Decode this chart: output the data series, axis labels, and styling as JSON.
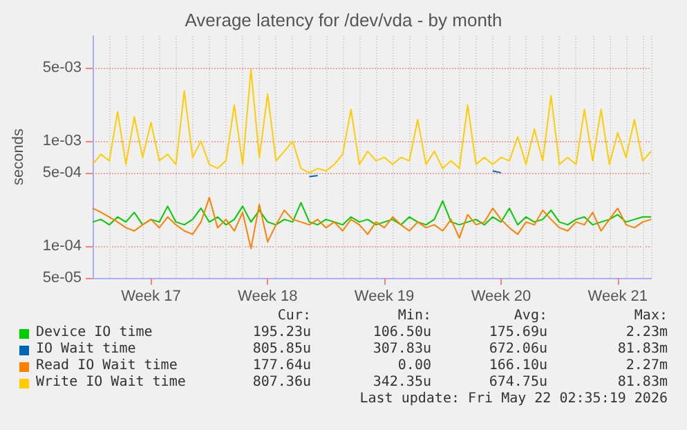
{
  "chart_data": {
    "type": "line",
    "title": "Average latency for /dev/vda - by month",
    "ylabel": "seconds",
    "log": "y",
    "grid": true,
    "legend": "bottom",
    "ylim": [
      5e-05,
      0.01
    ],
    "yticks": [
      {
        "value": 5e-05,
        "label": "5e-05"
      },
      {
        "value": 0.0001,
        "label": "1e-04"
      },
      {
        "value": 0.0005,
        "label": "5e-04"
      },
      {
        "value": 0.001,
        "label": "1e-03"
      },
      {
        "value": 0.005,
        "label": "5e-03"
      }
    ],
    "categories": [
      null,
      null,
      null,
      null,
      null,
      null,
      null,
      "Week 17",
      null,
      null,
      null,
      null,
      null,
      null,
      null,
      null,
      null,
      null,
      null,
      null,
      null,
      "Week 18",
      null,
      null,
      null,
      null,
      null,
      null,
      null,
      null,
      null,
      null,
      null,
      null,
      null,
      "Week 19",
      null,
      null,
      null,
      null,
      null,
      null,
      null,
      null,
      null,
      null,
      null,
      null,
      null,
      "Week 20",
      null,
      null,
      null,
      null,
      null,
      null,
      null,
      null,
      null,
      null,
      null,
      null,
      null,
      "Week 21",
      null,
      null,
      null,
      null
    ],
    "series": [
      {
        "name": "Device IO time",
        "color": "#00cc00",
        "values": [
          0.00017,
          0.00018,
          0.00016,
          0.00019,
          0.00017,
          0.00021,
          0.00016,
          0.00018,
          0.00017,
          0.00024,
          0.00017,
          0.00016,
          0.00018,
          0.00023,
          0.00017,
          0.00019,
          0.00016,
          0.00018,
          0.00024,
          0.00017,
          0.00022,
          0.00017,
          0.00016,
          0.00018,
          0.00017,
          0.00026,
          0.00017,
          0.00016,
          0.00018,
          0.00017,
          0.00016,
          0.00019,
          0.00017,
          0.00018,
          0.00016,
          0.00017,
          0.00018,
          0.00016,
          0.00019,
          0.00017,
          0.00016,
          0.00018,
          0.00027,
          0.00017,
          0.00016,
          0.00017,
          0.00018,
          0.00016,
          0.00019,
          0.00017,
          0.00023,
          0.00016,
          0.00019,
          0.00017,
          0.00018,
          0.00022,
          0.00017,
          0.00016,
          0.00018,
          0.00019,
          0.00016,
          0.00017,
          0.00018,
          0.0002,
          0.00017,
          0.00018,
          0.00019,
          0.00019
        ]
      },
      {
        "name": "IO Wait time",
        "color": "#0066b3",
        "values": [
          null,
          null,
          null,
          null,
          null,
          null,
          null,
          null,
          null,
          null,
          null,
          null,
          null,
          null,
          null,
          null,
          null,
          null,
          null,
          null,
          null,
          null,
          null,
          null,
          null,
          null,
          0.00046,
          0.00047,
          null,
          null,
          null,
          null,
          null,
          null,
          null,
          null,
          null,
          null,
          null,
          null,
          null,
          null,
          null,
          null,
          null,
          null,
          null,
          null,
          0.00052,
          0.0005,
          null,
          null,
          null,
          null,
          null,
          null,
          null,
          null,
          null,
          null,
          null,
          null,
          null,
          null,
          null,
          null,
          null,
          null
        ]
      },
      {
        "name": "Read IO Wait time",
        "color": "#ff8000",
        "values": [
          0.00023,
          0.00021,
          0.00019,
          0.00017,
          0.00015,
          0.00014,
          0.00016,
          0.00018,
          0.00015,
          0.00019,
          0.00016,
          0.00014,
          0.00013,
          0.00017,
          0.00029,
          0.00015,
          0.00018,
          0.00014,
          0.00021,
          9.5e-05,
          0.00025,
          0.00011,
          0.00016,
          0.00022,
          0.00018,
          0.00017,
          0.00016,
          0.00018,
          0.00015,
          0.00017,
          0.00014,
          0.00018,
          0.00016,
          0.00013,
          0.00017,
          0.00015,
          0.00019,
          0.00016,
          0.00014,
          0.00017,
          0.00015,
          0.00016,
          0.00014,
          0.00018,
          0.00012,
          0.0002,
          0.00016,
          0.00017,
          0.00023,
          0.00018,
          0.00015,
          0.00013,
          0.00017,
          0.00016,
          0.00022,
          0.00018,
          0.00015,
          0.00014,
          0.00017,
          0.00016,
          0.00021,
          0.00014,
          0.00018,
          0.00023,
          0.00016,
          0.00015,
          0.00017,
          0.00018
        ]
      },
      {
        "name": "Write IO Wait time",
        "color": "#ffcc00",
        "values": [
          0.0006,
          0.00075,
          0.00065,
          0.0019,
          0.0006,
          0.0017,
          0.0007,
          0.0015,
          0.00065,
          0.00075,
          0.0006,
          0.003,
          0.0007,
          0.001,
          0.0006,
          0.00055,
          0.00065,
          0.0022,
          0.0006,
          0.0048,
          0.0007,
          0.0028,
          0.00065,
          0.0008,
          0.001,
          0.00055,
          0.0005,
          0.00055,
          0.00052,
          0.0006,
          0.00075,
          0.002,
          0.0006,
          0.0008,
          0.00065,
          0.0007,
          0.0006,
          0.0007,
          0.00065,
          0.0016,
          0.0006,
          0.0008,
          0.00055,
          0.00065,
          0.00055,
          0.0022,
          0.0006,
          0.0007,
          0.0006,
          0.0007,
          0.00065,
          0.0011,
          0.0006,
          0.0013,
          0.00065,
          0.0027,
          0.0006,
          0.0007,
          0.0006,
          0.002,
          0.00065,
          0.002,
          0.0006,
          0.0012,
          0.0007,
          0.0016,
          0.00065,
          0.0008
        ]
      }
    ],
    "annotations": [
      "Cur:",
      "Min:",
      "Avg:",
      "Max:",
      "195.23u",
      "106.50u",
      "175.69u",
      "2.23m",
      "805.85u",
      "307.83u",
      "672.06u",
      "81.83m",
      "177.64u",
      "0.00",
      "166.10u",
      "2.27m",
      "807.36u",
      "342.35u",
      "674.75u",
      "81.83m",
      "Last update: Fri May 22 02:35:19 2026"
    ]
  }
}
